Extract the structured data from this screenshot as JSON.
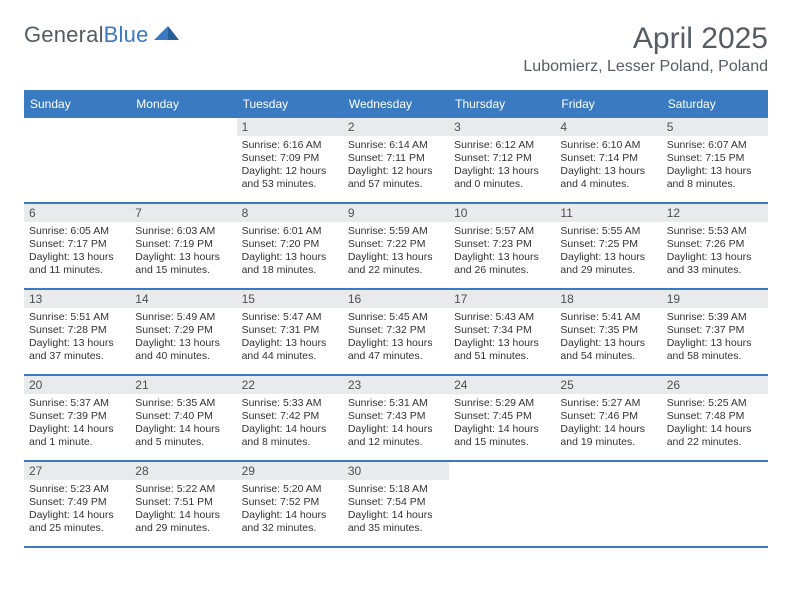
{
  "logo": {
    "word1": "General",
    "word2": "Blue"
  },
  "title": "April 2025",
  "location": "Lubomierz, Lesser Poland, Poland",
  "colors": {
    "accent": "#3a7ac0",
    "header_band_bg": "#e9eaeb",
    "text": "#333333",
    "muted": "#555c63",
    "background": "#ffffff"
  },
  "typography": {
    "month_title_fontsize": 30,
    "location_fontsize": 16,
    "dow_fontsize": 12,
    "daynum_fontsize": 12,
    "body_fontsize": 10.5,
    "logo_fontsize": 22
  },
  "days_of_week": [
    "Sunday",
    "Monday",
    "Tuesday",
    "Wednesday",
    "Thursday",
    "Friday",
    "Saturday"
  ],
  "weeks": [
    [
      null,
      null,
      {
        "n": "1",
        "sunrise": "Sunrise: 6:16 AM",
        "sunset": "Sunset: 7:09 PM",
        "day_a": "Daylight: 12 hours",
        "day_b": "and 53 minutes."
      },
      {
        "n": "2",
        "sunrise": "Sunrise: 6:14 AM",
        "sunset": "Sunset: 7:11 PM",
        "day_a": "Daylight: 12 hours",
        "day_b": "and 57 minutes."
      },
      {
        "n": "3",
        "sunrise": "Sunrise: 6:12 AM",
        "sunset": "Sunset: 7:12 PM",
        "day_a": "Daylight: 13 hours",
        "day_b": "and 0 minutes."
      },
      {
        "n": "4",
        "sunrise": "Sunrise: 6:10 AM",
        "sunset": "Sunset: 7:14 PM",
        "day_a": "Daylight: 13 hours",
        "day_b": "and 4 minutes."
      },
      {
        "n": "5",
        "sunrise": "Sunrise: 6:07 AM",
        "sunset": "Sunset: 7:15 PM",
        "day_a": "Daylight: 13 hours",
        "day_b": "and 8 minutes."
      }
    ],
    [
      {
        "n": "6",
        "sunrise": "Sunrise: 6:05 AM",
        "sunset": "Sunset: 7:17 PM",
        "day_a": "Daylight: 13 hours",
        "day_b": "and 11 minutes."
      },
      {
        "n": "7",
        "sunrise": "Sunrise: 6:03 AM",
        "sunset": "Sunset: 7:19 PM",
        "day_a": "Daylight: 13 hours",
        "day_b": "and 15 minutes."
      },
      {
        "n": "8",
        "sunrise": "Sunrise: 6:01 AM",
        "sunset": "Sunset: 7:20 PM",
        "day_a": "Daylight: 13 hours",
        "day_b": "and 18 minutes."
      },
      {
        "n": "9",
        "sunrise": "Sunrise: 5:59 AM",
        "sunset": "Sunset: 7:22 PM",
        "day_a": "Daylight: 13 hours",
        "day_b": "and 22 minutes."
      },
      {
        "n": "10",
        "sunrise": "Sunrise: 5:57 AM",
        "sunset": "Sunset: 7:23 PM",
        "day_a": "Daylight: 13 hours",
        "day_b": "and 26 minutes."
      },
      {
        "n": "11",
        "sunrise": "Sunrise: 5:55 AM",
        "sunset": "Sunset: 7:25 PM",
        "day_a": "Daylight: 13 hours",
        "day_b": "and 29 minutes."
      },
      {
        "n": "12",
        "sunrise": "Sunrise: 5:53 AM",
        "sunset": "Sunset: 7:26 PM",
        "day_a": "Daylight: 13 hours",
        "day_b": "and 33 minutes."
      }
    ],
    [
      {
        "n": "13",
        "sunrise": "Sunrise: 5:51 AM",
        "sunset": "Sunset: 7:28 PM",
        "day_a": "Daylight: 13 hours",
        "day_b": "and 37 minutes."
      },
      {
        "n": "14",
        "sunrise": "Sunrise: 5:49 AM",
        "sunset": "Sunset: 7:29 PM",
        "day_a": "Daylight: 13 hours",
        "day_b": "and 40 minutes."
      },
      {
        "n": "15",
        "sunrise": "Sunrise: 5:47 AM",
        "sunset": "Sunset: 7:31 PM",
        "day_a": "Daylight: 13 hours",
        "day_b": "and 44 minutes."
      },
      {
        "n": "16",
        "sunrise": "Sunrise: 5:45 AM",
        "sunset": "Sunset: 7:32 PM",
        "day_a": "Daylight: 13 hours",
        "day_b": "and 47 minutes."
      },
      {
        "n": "17",
        "sunrise": "Sunrise: 5:43 AM",
        "sunset": "Sunset: 7:34 PM",
        "day_a": "Daylight: 13 hours",
        "day_b": "and 51 minutes."
      },
      {
        "n": "18",
        "sunrise": "Sunrise: 5:41 AM",
        "sunset": "Sunset: 7:35 PM",
        "day_a": "Daylight: 13 hours",
        "day_b": "and 54 minutes."
      },
      {
        "n": "19",
        "sunrise": "Sunrise: 5:39 AM",
        "sunset": "Sunset: 7:37 PM",
        "day_a": "Daylight: 13 hours",
        "day_b": "and 58 minutes."
      }
    ],
    [
      {
        "n": "20",
        "sunrise": "Sunrise: 5:37 AM",
        "sunset": "Sunset: 7:39 PM",
        "day_a": "Daylight: 14 hours",
        "day_b": "and 1 minute."
      },
      {
        "n": "21",
        "sunrise": "Sunrise: 5:35 AM",
        "sunset": "Sunset: 7:40 PM",
        "day_a": "Daylight: 14 hours",
        "day_b": "and 5 minutes."
      },
      {
        "n": "22",
        "sunrise": "Sunrise: 5:33 AM",
        "sunset": "Sunset: 7:42 PM",
        "day_a": "Daylight: 14 hours",
        "day_b": "and 8 minutes."
      },
      {
        "n": "23",
        "sunrise": "Sunrise: 5:31 AM",
        "sunset": "Sunset: 7:43 PM",
        "day_a": "Daylight: 14 hours",
        "day_b": "and 12 minutes."
      },
      {
        "n": "24",
        "sunrise": "Sunrise: 5:29 AM",
        "sunset": "Sunset: 7:45 PM",
        "day_a": "Daylight: 14 hours",
        "day_b": "and 15 minutes."
      },
      {
        "n": "25",
        "sunrise": "Sunrise: 5:27 AM",
        "sunset": "Sunset: 7:46 PM",
        "day_a": "Daylight: 14 hours",
        "day_b": "and 19 minutes."
      },
      {
        "n": "26",
        "sunrise": "Sunrise: 5:25 AM",
        "sunset": "Sunset: 7:48 PM",
        "day_a": "Daylight: 14 hours",
        "day_b": "and 22 minutes."
      }
    ],
    [
      {
        "n": "27",
        "sunrise": "Sunrise: 5:23 AM",
        "sunset": "Sunset: 7:49 PM",
        "day_a": "Daylight: 14 hours",
        "day_b": "and 25 minutes."
      },
      {
        "n": "28",
        "sunrise": "Sunrise: 5:22 AM",
        "sunset": "Sunset: 7:51 PM",
        "day_a": "Daylight: 14 hours",
        "day_b": "and 29 minutes."
      },
      {
        "n": "29",
        "sunrise": "Sunrise: 5:20 AM",
        "sunset": "Sunset: 7:52 PM",
        "day_a": "Daylight: 14 hours",
        "day_b": "and 32 minutes."
      },
      {
        "n": "30",
        "sunrise": "Sunrise: 5:18 AM",
        "sunset": "Sunset: 7:54 PM",
        "day_a": "Daylight: 14 hours",
        "day_b": "and 35 minutes."
      },
      null,
      null,
      null
    ]
  ]
}
